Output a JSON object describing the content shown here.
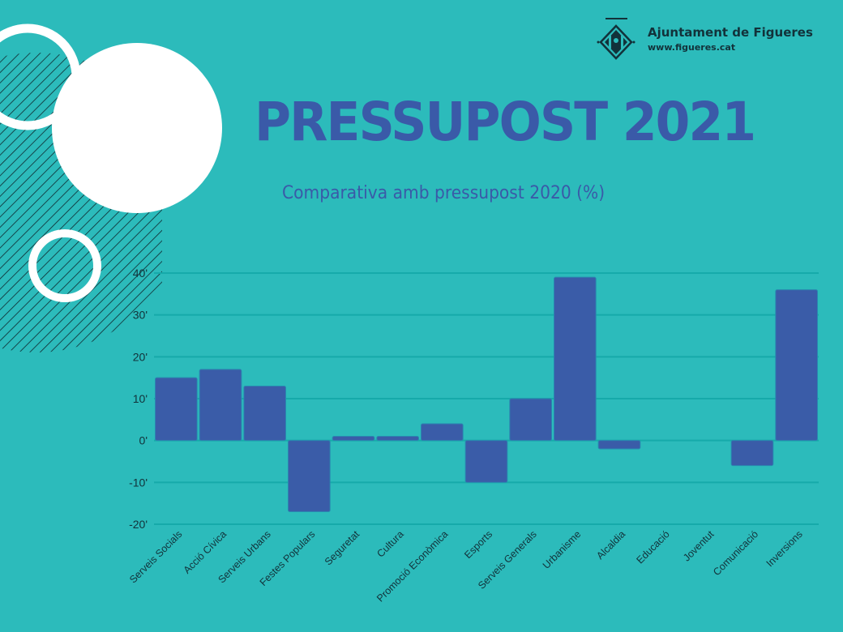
{
  "header": {
    "org_name": "Ajuntament de Figueres",
    "org_url": "www.figueres.cat",
    "title": "PRESSUPOST 2021",
    "subtitle": "Comparativa amb pressupost 2020 (%)"
  },
  "colors": {
    "background": "#2cbbbb",
    "bar": "#3a5ca8",
    "grid": "#16aaaa",
    "title": "#3a5aa8",
    "text": "#12323a"
  },
  "chart_data": {
    "type": "bar",
    "title": "PRESSUPOST 2021",
    "subtitle": "Comparativa amb pressupost 2020 (%)",
    "xlabel": "",
    "ylabel": "",
    "ylim": [
      -20,
      40
    ],
    "yticks": [
      40,
      30,
      20,
      10,
      0,
      -10,
      -20
    ],
    "ytick_labels": [
      "40'",
      "30'",
      "20'",
      "10'",
      "0'",
      "-10'",
      "-20'"
    ],
    "grid": true,
    "legend": "none",
    "categories": [
      "Serveis Socials",
      "Acció Cívica",
      "Serveis Urbans",
      "Festes Populars",
      "Seguretat",
      "Cultura",
      "Promoció Econòmica",
      "Esports",
      "Serveis Generals",
      "Urbanisme",
      "Alcaldia",
      "Educació",
      "Joventut",
      "Comunicació",
      "Inversions"
    ],
    "values": [
      15,
      17,
      13,
      -17,
      1,
      1,
      4,
      -10,
      10,
      39,
      -2,
      0,
      0,
      -6,
      36
    ]
  }
}
